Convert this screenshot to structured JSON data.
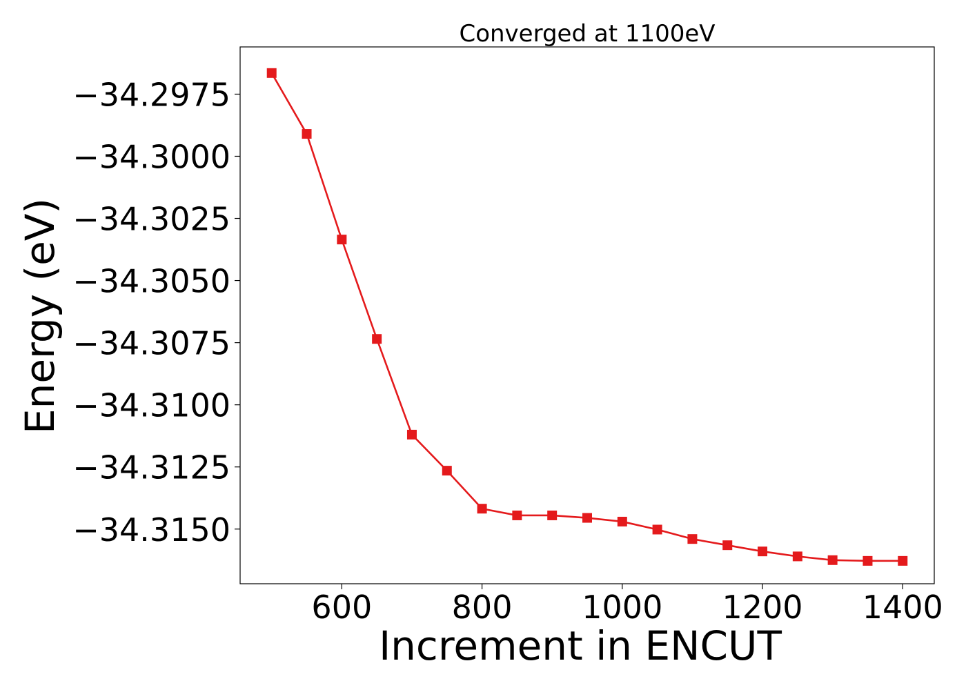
{
  "chart_data": {
    "type": "line",
    "title": "Converged at 1100eV",
    "xlabel": "Increment in ENCUT",
    "ylabel": "Energy (eV)",
    "xlim": [
      455,
      1445
    ],
    "ylim": [
      -34.3172,
      -34.2956
    ],
    "x_ticks": [
      600,
      800,
      1000,
      1200,
      1400
    ],
    "y_ticks": [
      -34.2975,
      -34.3,
      -34.3025,
      -34.305,
      -34.3075,
      -34.31,
      -34.3125,
      -34.315
    ],
    "y_tick_labels": [
      "−34.2975",
      "−34.3000",
      "−34.3025",
      "−34.3050",
      "−34.3075",
      "−34.3100",
      "−34.3125",
      "−34.3150"
    ],
    "grid": false,
    "series": [
      {
        "color": "#e41a1c",
        "marker": "square",
        "x": [
          500,
          550,
          600,
          650,
          700,
          750,
          800,
          850,
          900,
          950,
          1000,
          1050,
          1100,
          1150,
          1200,
          1250,
          1300,
          1350,
          1400
        ],
        "y": [
          -34.29665,
          -34.2991,
          -34.30335,
          -34.30735,
          -34.3112,
          -34.31265,
          -34.31418,
          -34.31445,
          -34.31445,
          -34.31455,
          -34.3147,
          -34.31502,
          -34.3154,
          -34.31565,
          -34.3159,
          -34.3161,
          -34.31625,
          -34.31628,
          -34.31628
        ]
      }
    ]
  }
}
